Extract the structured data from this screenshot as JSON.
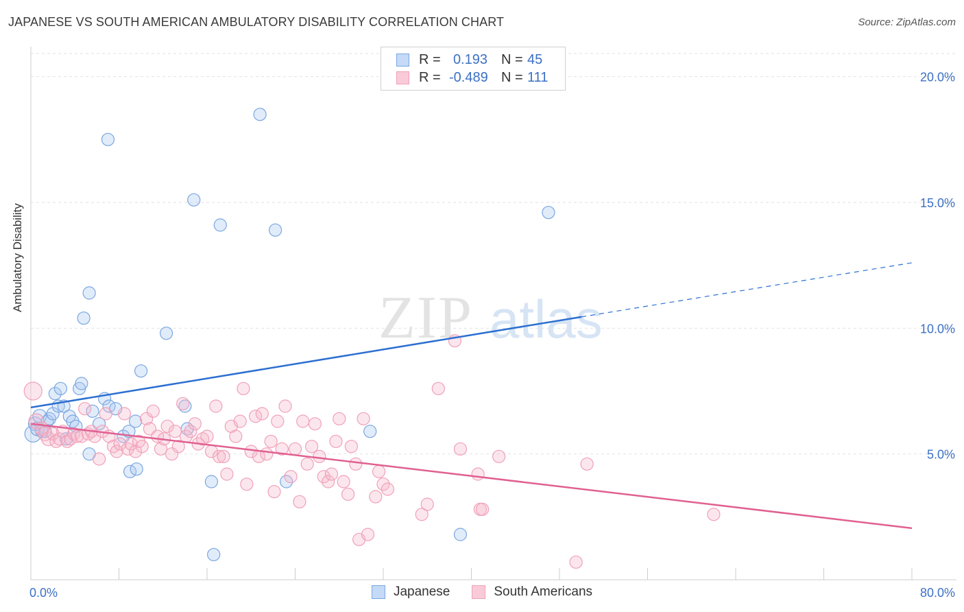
{
  "header": {
    "title": "JAPANESE VS SOUTH AMERICAN AMBULATORY DISABILITY CORRELATION CHART",
    "source": "Source: ZipAtlas.com"
  },
  "watermark": {
    "zip": "ZIP",
    "atlas": "atlas"
  },
  "legend": {
    "rows": [
      {
        "r_label": "R =",
        "r_value": "0.193",
        "n_label": "N =",
        "n_value": "45",
        "color": "#a8c8f0"
      },
      {
        "r_label": "R =",
        "r_value": "-0.489",
        "n_label": "N =",
        "n_value": "111",
        "color": "#f5b8cb"
      }
    ]
  },
  "chart_data": {
    "type": "scatter",
    "title": "JAPANESE VS SOUTH AMERICAN AMBULATORY DISABILITY CORRELATION CHART",
    "xlabel": "",
    "ylabel": "Ambulatory Disability",
    "xlim": [
      0,
      80
    ],
    "ylim": [
      0,
      21
    ],
    "x_tick_labels": [
      "0.0%",
      "80.0%"
    ],
    "y_ticks": [
      5,
      10,
      15,
      20
    ],
    "y_tick_labels": [
      "5.0%",
      "10.0%",
      "15.0%",
      "20.0%"
    ],
    "grid": true,
    "legend_position": "bottom",
    "series": [
      {
        "name": "Japanese",
        "color": "#7aa6e0",
        "line_color": "#2b6fd1",
        "trend": {
          "x0": 0,
          "y0": 6.85,
          "x1": 50,
          "y1": 10.45,
          "x_end": 80,
          "y_end": 12.6
        },
        "points": [
          [
            0.2,
            5.8,
            12
          ],
          [
            0.4,
            6.2,
            10
          ],
          [
            0.6,
            6.0,
            10
          ],
          [
            0.8,
            6.5,
            10
          ],
          [
            1.0,
            5.9,
            9
          ],
          [
            1.3,
            5.9,
            9
          ],
          [
            1.5,
            6.3,
            9
          ],
          [
            1.7,
            6.4,
            9
          ],
          [
            2.0,
            6.6,
            9
          ],
          [
            2.2,
            7.4,
            9
          ],
          [
            2.5,
            6.9,
            9
          ],
          [
            2.7,
            7.6,
            9
          ],
          [
            3.0,
            6.9,
            9
          ],
          [
            3.2,
            5.6,
            9
          ],
          [
            3.5,
            6.5,
            9
          ],
          [
            3.8,
            6.3,
            9
          ],
          [
            4.1,
            6.1,
            9
          ],
          [
            4.4,
            7.6,
            9
          ],
          [
            4.6,
            7.8,
            9
          ],
          [
            4.8,
            10.4,
            9
          ],
          [
            5.3,
            11.4,
            9
          ],
          [
            5.3,
            5.0,
            9
          ],
          [
            5.6,
            6.7,
            9
          ],
          [
            6.2,
            6.2,
            9
          ],
          [
            6.7,
            7.2,
            9
          ],
          [
            7.0,
            17.5,
            9
          ],
          [
            7.1,
            6.9,
            9
          ],
          [
            7.7,
            6.8,
            9
          ],
          [
            8.4,
            5.7,
            9
          ],
          [
            8.9,
            5.9,
            9
          ],
          [
            9.0,
            4.3,
            9
          ],
          [
            9.5,
            6.3,
            9
          ],
          [
            9.6,
            4.4,
            9
          ],
          [
            10.0,
            8.3,
            9
          ],
          [
            12.3,
            9.8,
            9
          ],
          [
            14.0,
            6.9,
            9
          ],
          [
            14.2,
            6.0,
            9
          ],
          [
            14.8,
            15.1,
            9
          ],
          [
            16.4,
            3.9,
            9
          ],
          [
            16.6,
            1.0,
            9
          ],
          [
            17.2,
            14.1,
            9
          ],
          [
            20.8,
            18.5,
            9
          ],
          [
            22.2,
            13.9,
            9
          ],
          [
            23.2,
            3.9,
            9
          ],
          [
            30.8,
            5.9,
            9
          ],
          [
            39.0,
            1.8,
            9
          ],
          [
            47.0,
            14.6,
            9
          ]
        ]
      },
      {
        "name": "South Americans",
        "color": "#f0a0b8",
        "line_color": "#e06090",
        "trend": {
          "x0": 0,
          "y0": 6.2,
          "x1": 80,
          "y1": 2.05
        },
        "points": [
          [
            0.2,
            7.5,
            13
          ],
          [
            0.5,
            6.3,
            11
          ],
          [
            1.0,
            6.0,
            10
          ],
          [
            1.3,
            5.8,
            10
          ],
          [
            1.6,
            5.6,
            10
          ],
          [
            2.0,
            5.8,
            9
          ],
          [
            2.3,
            5.5,
            9
          ],
          [
            2.6,
            5.6,
            9
          ],
          [
            2.9,
            5.9,
            9
          ],
          [
            3.3,
            5.5,
            9
          ],
          [
            3.6,
            5.6,
            9
          ],
          [
            3.9,
            5.8,
            9
          ],
          [
            4.2,
            5.7,
            9
          ],
          [
            4.6,
            5.7,
            9
          ],
          [
            4.9,
            6.8,
            9
          ],
          [
            5.2,
            5.8,
            9
          ],
          [
            5.5,
            5.9,
            9
          ],
          [
            5.8,
            5.7,
            9
          ],
          [
            6.2,
            4.8,
            9
          ],
          [
            6.5,
            5.9,
            9
          ],
          [
            6.8,
            6.6,
            9
          ],
          [
            7.1,
            5.7,
            9
          ],
          [
            7.5,
            5.3,
            9
          ],
          [
            7.8,
            5.1,
            9
          ],
          [
            8.1,
            5.4,
            9
          ],
          [
            8.5,
            6.6,
            9
          ],
          [
            8.8,
            5.2,
            9
          ],
          [
            9.1,
            5.4,
            9
          ],
          [
            9.5,
            5.1,
            9
          ],
          [
            9.8,
            5.5,
            9
          ],
          [
            10.1,
            5.3,
            9
          ],
          [
            10.5,
            6.4,
            9
          ],
          [
            10.8,
            6.0,
            9
          ],
          [
            11.1,
            6.7,
            9
          ],
          [
            11.5,
            5.7,
            9
          ],
          [
            11.8,
            5.2,
            9
          ],
          [
            12.1,
            5.6,
            9
          ],
          [
            12.4,
            6.1,
            9
          ],
          [
            12.8,
            5.0,
            9
          ],
          [
            13.1,
            5.9,
            9
          ],
          [
            13.4,
            5.3,
            9
          ],
          [
            13.8,
            7.0,
            9
          ],
          [
            14.1,
            5.7,
            9
          ],
          [
            14.5,
            5.9,
            9
          ],
          [
            14.9,
            6.2,
            9
          ],
          [
            15.2,
            5.4,
            9
          ],
          [
            15.6,
            5.6,
            9
          ],
          [
            16.0,
            5.7,
            9
          ],
          [
            16.4,
            5.1,
            9
          ],
          [
            16.8,
            6.9,
            9
          ],
          [
            17.1,
            4.9,
            9
          ],
          [
            17.5,
            4.9,
            9
          ],
          [
            17.8,
            4.2,
            9
          ],
          [
            18.2,
            6.1,
            9
          ],
          [
            18.6,
            5.7,
            9
          ],
          [
            19.0,
            6.3,
            9
          ],
          [
            19.3,
            7.6,
            9
          ],
          [
            19.6,
            3.8,
            9
          ],
          [
            20.0,
            5.1,
            9
          ],
          [
            20.4,
            6.5,
            9
          ],
          [
            20.7,
            4.9,
            9
          ],
          [
            21.0,
            6.6,
            9
          ],
          [
            21.4,
            5.0,
            9
          ],
          [
            21.8,
            5.5,
            9
          ],
          [
            22.1,
            3.5,
            9
          ],
          [
            22.4,
            6.3,
            9
          ],
          [
            22.8,
            5.2,
            9
          ],
          [
            23.1,
            6.9,
            9
          ],
          [
            23.6,
            4.1,
            9
          ],
          [
            24.0,
            5.2,
            9
          ],
          [
            24.4,
            3.1,
            9
          ],
          [
            24.7,
            6.3,
            9
          ],
          [
            25.1,
            4.6,
            9
          ],
          [
            25.5,
            5.3,
            9
          ],
          [
            25.8,
            6.2,
            9
          ],
          [
            26.2,
            4.9,
            9
          ],
          [
            26.6,
            4.1,
            9
          ],
          [
            27.0,
            3.9,
            9
          ],
          [
            27.3,
            4.2,
            9
          ],
          [
            27.7,
            5.5,
            9
          ],
          [
            28.0,
            6.4,
            9
          ],
          [
            28.4,
            3.9,
            9
          ],
          [
            28.8,
            3.4,
            9
          ],
          [
            29.1,
            5.3,
            9
          ],
          [
            29.5,
            4.6,
            9
          ],
          [
            29.8,
            1.6,
            9
          ],
          [
            30.2,
            6.4,
            9
          ],
          [
            30.6,
            1.8,
            9
          ],
          [
            31.3,
            3.3,
            9
          ],
          [
            31.6,
            4.3,
            9
          ],
          [
            32.0,
            3.8,
            9
          ],
          [
            32.4,
            3.6,
            9
          ],
          [
            35.5,
            2.6,
            9
          ],
          [
            36.0,
            3.0,
            9
          ],
          [
            37.0,
            7.6,
            9
          ],
          [
            38.5,
            9.5,
            9
          ],
          [
            39.0,
            5.2,
            9
          ],
          [
            40.6,
            4.2,
            9
          ],
          [
            40.8,
            2.8,
            9
          ],
          [
            41.0,
            2.8,
            9
          ],
          [
            42.5,
            4.9,
            9
          ],
          [
            49.5,
            0.7,
            9
          ],
          [
            50.5,
            4.6,
            9
          ],
          [
            62.0,
            2.6,
            9
          ]
        ]
      }
    ]
  }
}
